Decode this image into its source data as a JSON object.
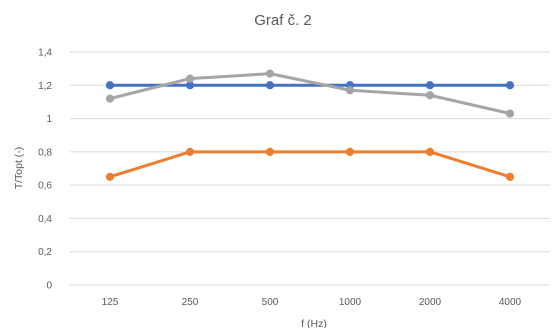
{
  "chart_data": {
    "type": "line",
    "title": "Graf č. 2",
    "xlabel": "f (Hz)",
    "ylabel": "T/Topt (-)",
    "categories": [
      "125",
      "250",
      "500",
      "1000",
      "2000",
      "4000"
    ],
    "ylim": [
      0,
      1.4
    ],
    "yticks": [
      0,
      0.2,
      0.4,
      0.6,
      0.8,
      1,
      1.2,
      1.4
    ],
    "ytick_labels": [
      "0",
      "0,2",
      "0,4",
      "0,6",
      "0,8",
      "1",
      "1,2",
      "1,4"
    ],
    "grid": true,
    "series": [
      {
        "color": "#4472c4",
        "values": [
          1.2,
          1.2,
          1.2,
          1.2,
          1.2,
          1.2
        ]
      },
      {
        "color": "#ed7d31",
        "values": [
          0.65,
          0.8,
          0.8,
          0.8,
          0.8,
          0.65
        ]
      },
      {
        "color": "#a5a5a5",
        "values": [
          1.12,
          1.24,
          1.27,
          1.17,
          1.14,
          1.03
        ]
      }
    ]
  }
}
